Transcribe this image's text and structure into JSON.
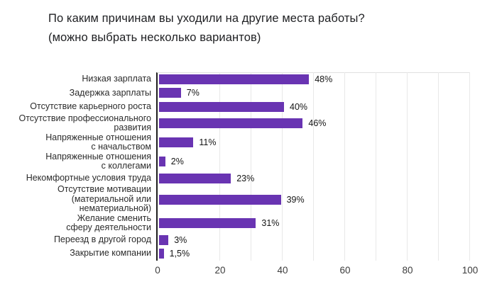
{
  "title": {
    "text": "По каким причинам вы уходили на другие места работы?\n(можно выбрать несколько вариантов)"
  },
  "chart_data": {
    "type": "bar",
    "orientation": "horizontal",
    "title": "По каким причинам вы уходили на другие места работы? (можно выбрать несколько вариантов)",
    "categories": [
      "Низкая зарплата",
      "Задержка зарплаты",
      "Отсутствие карьерного роста",
      "Отсутствие профессионального\nразвития",
      "Напряженные отношения\nс начальством",
      "Напряженные отношения\nс коллегами",
      "Некомфортные условия труда",
      "Отсутствие мотивации\n(материальной или нематериальной)",
      "Желание сменить\nсферу деятельности",
      "Переезд в другой город",
      "Закрытие компании"
    ],
    "values": [
      48,
      7,
      40,
      46,
      11,
      2,
      23,
      39,
      31,
      3,
      1.5
    ],
    "value_labels": [
      "48%",
      "7%",
      "40%",
      "46%",
      "11%",
      "2%",
      "23%",
      "39%",
      "31%",
      "3%",
      "1,5%"
    ],
    "xlabel": "",
    "ylabel": "",
    "xlim": [
      0,
      100
    ],
    "x_ticks": [
      0,
      20,
      40,
      60,
      80,
      100
    ],
    "gridlines": [
      20,
      30,
      40,
      50,
      60,
      70,
      80,
      90,
      100
    ],
    "grid": true,
    "legend": false,
    "bar_color": "#6934b2"
  }
}
